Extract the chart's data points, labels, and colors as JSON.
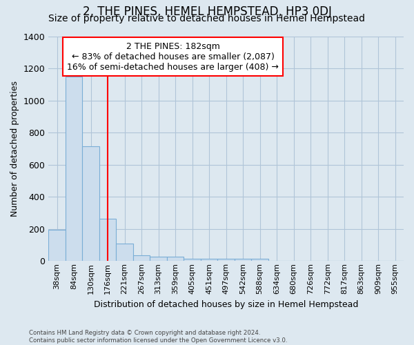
{
  "title": "2, THE PINES, HEMEL HEMPSTEAD, HP3 0DJ",
  "subtitle": "Size of property relative to detached houses in Hemel Hempstead",
  "xlabel": "Distribution of detached houses by size in Hemel Hempstead",
  "ylabel": "Number of detached properties",
  "categories": [
    "38sqm",
    "84sqm",
    "130sqm",
    "176sqm",
    "221sqm",
    "267sqm",
    "313sqm",
    "359sqm",
    "405sqm",
    "451sqm",
    "497sqm",
    "542sqm",
    "588sqm",
    "634sqm",
    "680sqm",
    "726sqm",
    "772sqm",
    "817sqm",
    "863sqm",
    "909sqm",
    "955sqm"
  ],
  "values": [
    193,
    1148,
    715,
    265,
    110,
    35,
    28,
    28,
    14,
    14,
    13,
    14,
    14,
    0,
    0,
    0,
    0,
    0,
    0,
    0,
    0
  ],
  "bar_color": "#ccdded",
  "bar_edge_color": "#7aaed6",
  "vline_x": 3.0,
  "vline_color": "red",
  "annotation_text": "2 THE PINES: 182sqm\n← 83% of detached houses are smaller (2,087)\n16% of semi-detached houses are larger (408) →",
  "annotation_box_color": "white",
  "annotation_box_edge": "red",
  "ylim": [
    0,
    1400
  ],
  "footer": "Contains HM Land Registry data © Crown copyright and database right 2024.\nContains public sector information licensed under the Open Government Licence v3.0.",
  "bg_color": "#dde8f0",
  "plot_bg_color": "#dde8f0",
  "grid_color": "#b0c4d8",
  "title_fontsize": 12,
  "subtitle_fontsize": 10,
  "tick_fontsize": 8,
  "ylabel_fontsize": 9,
  "xlabel_fontsize": 9,
  "annotation_fontsize": 9
}
